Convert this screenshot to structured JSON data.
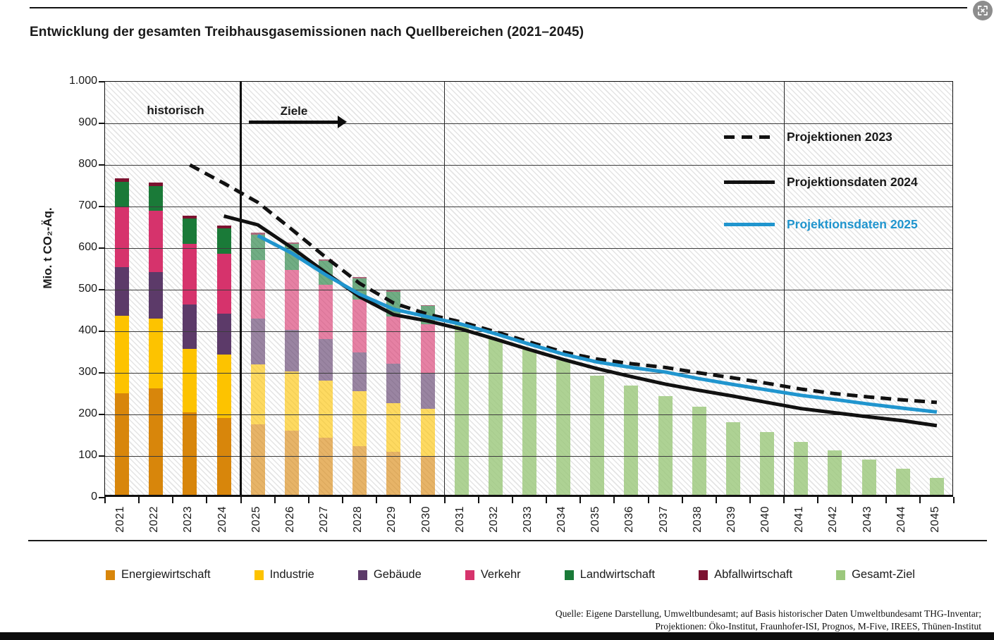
{
  "window": {
    "expand_button_icon": "fullscreen-expand"
  },
  "header": {
    "title": "Entwicklung der gesamten Treibhausgasemissionen nach Quellbereichen (2021–2045)"
  },
  "chart_data": {
    "type": "bar",
    "title": "Entwicklung der gesamten Treibhausgasemissionen nach Quellbereichen (2021–2045)",
    "xlabel": "",
    "ylabel": "Mio. t CO₂-Äq.",
    "ylim": [
      0,
      1000
    ],
    "grid": true,
    "legend_position": "top-right",
    "y_ticks": [
      "1.000",
      "900",
      "800",
      "700",
      "600",
      "500",
      "400",
      "300",
      "200",
      "100",
      "0"
    ],
    "x_years": [
      "2021",
      "2022",
      "2023",
      "2024",
      "2025",
      "2026",
      "2027",
      "2028",
      "2029",
      "2030",
      "2031",
      "2032",
      "2033",
      "2034",
      "2035",
      "2036",
      "2037",
      "2038",
      "2039",
      "2040",
      "2041",
      "2042",
      "2043",
      "2044",
      "2045"
    ],
    "annotations": {
      "historical_label": "historisch",
      "goals_label": "Ziele"
    },
    "stacked_bars": {
      "years": [
        "2021",
        "2022",
        "2023",
        "2024",
        "2025",
        "2026",
        "2027",
        "2028",
        "2029",
        "2030"
      ],
      "faded_from_year": 2025,
      "series": [
        {
          "name": "Energiewirtschaft",
          "color": "#d8860b",
          "values": [
            244,
            256,
            199,
            185,
            170,
            154,
            138,
            117,
            104,
            93
          ]
        },
        {
          "name": "Industrie",
          "color": "#fdc300",
          "values": [
            187,
            167,
            152,
            153,
            144,
            143,
            136,
            133,
            116,
            114
          ]
        },
        {
          "name": "Gebäude",
          "color": "#5c3a69",
          "values": [
            116,
            112,
            106,
            97,
            110,
            99,
            101,
            92,
            96,
            84
          ]
        },
        {
          "name": "Verkehr",
          "color": "#d6336c",
          "values": [
            144,
            148,
            147,
            144,
            140,
            144,
            130,
            128,
            113,
            119
          ]
        },
        {
          "name": "Landwirtschaft",
          "color": "#1a7a38",
          "values": [
            62,
            60,
            61,
            61,
            61,
            63,
            58,
            50,
            60,
            44
          ]
        },
        {
          "name": "Abfallwirtschaft",
          "color": "#7c1230",
          "values": [
            8,
            8,
            7,
            7,
            5,
            3,
            3,
            3,
            3,
            2
          ]
        }
      ]
    },
    "target_bars": {
      "name": "Gesamt-Ziel",
      "color": "#9cc87d",
      "years": [
        "2031",
        "2032",
        "2033",
        "2034",
        "2035",
        "2036",
        "2037",
        "2038",
        "2039",
        "2040",
        "2041",
        "2042",
        "2043",
        "2044",
        "2045"
      ],
      "values": [
        411,
        375,
        350,
        324,
        287,
        262,
        237,
        212,
        174,
        151,
        127,
        106,
        84,
        62,
        40
      ]
    },
    "lines": [
      {
        "name": "Projektionen 2023",
        "style": "dashed",
        "color": "#111111",
        "start_year": 2023,
        "values": [
          800,
          756,
          710,
          645,
          578,
          515,
          468,
          441,
          422,
          399,
          374,
          350,
          333,
          322,
          313,
          300,
          288,
          275,
          261,
          250,
          242,
          235,
          229
        ]
      },
      {
        "name": "Projektionsdaten 2024",
        "style": "solid",
        "color": "#111111",
        "start_year": 2024,
        "values": [
          677,
          656,
          601,
          541,
          483,
          440,
          425,
          405,
          381,
          356,
          332,
          310,
          291,
          273,
          258,
          244,
          229,
          214,
          204,
          194,
          185,
          173
        ]
      },
      {
        "name": "Projektionsdaten 2025",
        "style": "solid",
        "color": "#2095ce",
        "start_year": 2025,
        "values": [
          630,
          588,
          536,
          489,
          453,
          435,
          417,
          394,
          369,
          345,
          326,
          313,
          302,
          286,
          272,
          259,
          246,
          236,
          225,
          215,
          206
        ]
      }
    ]
  },
  "footer": {
    "source_line1": "Quelle: Eigene Darstellung, Umweltbundesamt; auf Basis historischer Daten Umweltbundesamt THG-Inventar;",
    "source_line2": "Projektionen: Öko-Institut, Fraunhofer-ISI, Prognos, M-Five, IREES, Thünen-Institut"
  }
}
